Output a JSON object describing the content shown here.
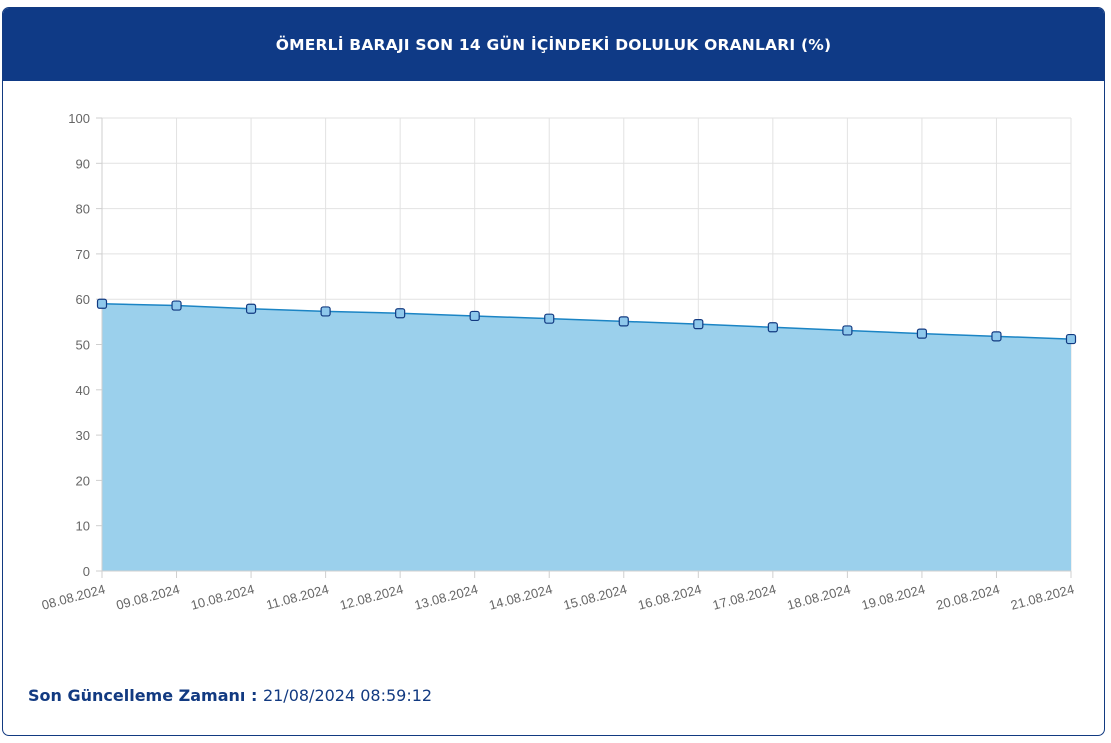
{
  "header": {
    "title": "ÖMERLİ BARAJI SON 14 GÜN İÇİNDEKİ DOLULUK ORANLARI (%)"
  },
  "footer": {
    "label": "Son Güncelleme Zamanı",
    "separator": " : ",
    "value": "21/08/2024 08:59:12"
  },
  "colors": {
    "header_bg": "#0f3a86",
    "area_fill": "#9bd0ec",
    "line": "#1b84c4",
    "marker_fill": "#8ec8ec",
    "marker_stroke": "#123a81"
  },
  "chart_data": {
    "type": "area",
    "title": "ÖMERLİ BARAJI SON 14 GÜN İÇİNDEKİ DOLULUK ORANLARI (%)",
    "categories": [
      "08.08.2024",
      "09.08.2024",
      "10.08.2024",
      "11.08.2024",
      "12.08.2024",
      "13.08.2024",
      "14.08.2024",
      "15.08.2024",
      "16.08.2024",
      "17.08.2024",
      "18.08.2024",
      "19.08.2024",
      "20.08.2024",
      "21.08.2024"
    ],
    "values": [
      59.0,
      58.6,
      57.9,
      57.3,
      56.9,
      56.3,
      55.7,
      55.1,
      54.5,
      53.8,
      53.1,
      52.4,
      51.8,
      51.2
    ],
    "ylim": [
      0,
      100
    ],
    "yticks": [
      0,
      10,
      20,
      30,
      40,
      50,
      60,
      70,
      80,
      90,
      100
    ],
    "grid": true,
    "legend": "none"
  }
}
